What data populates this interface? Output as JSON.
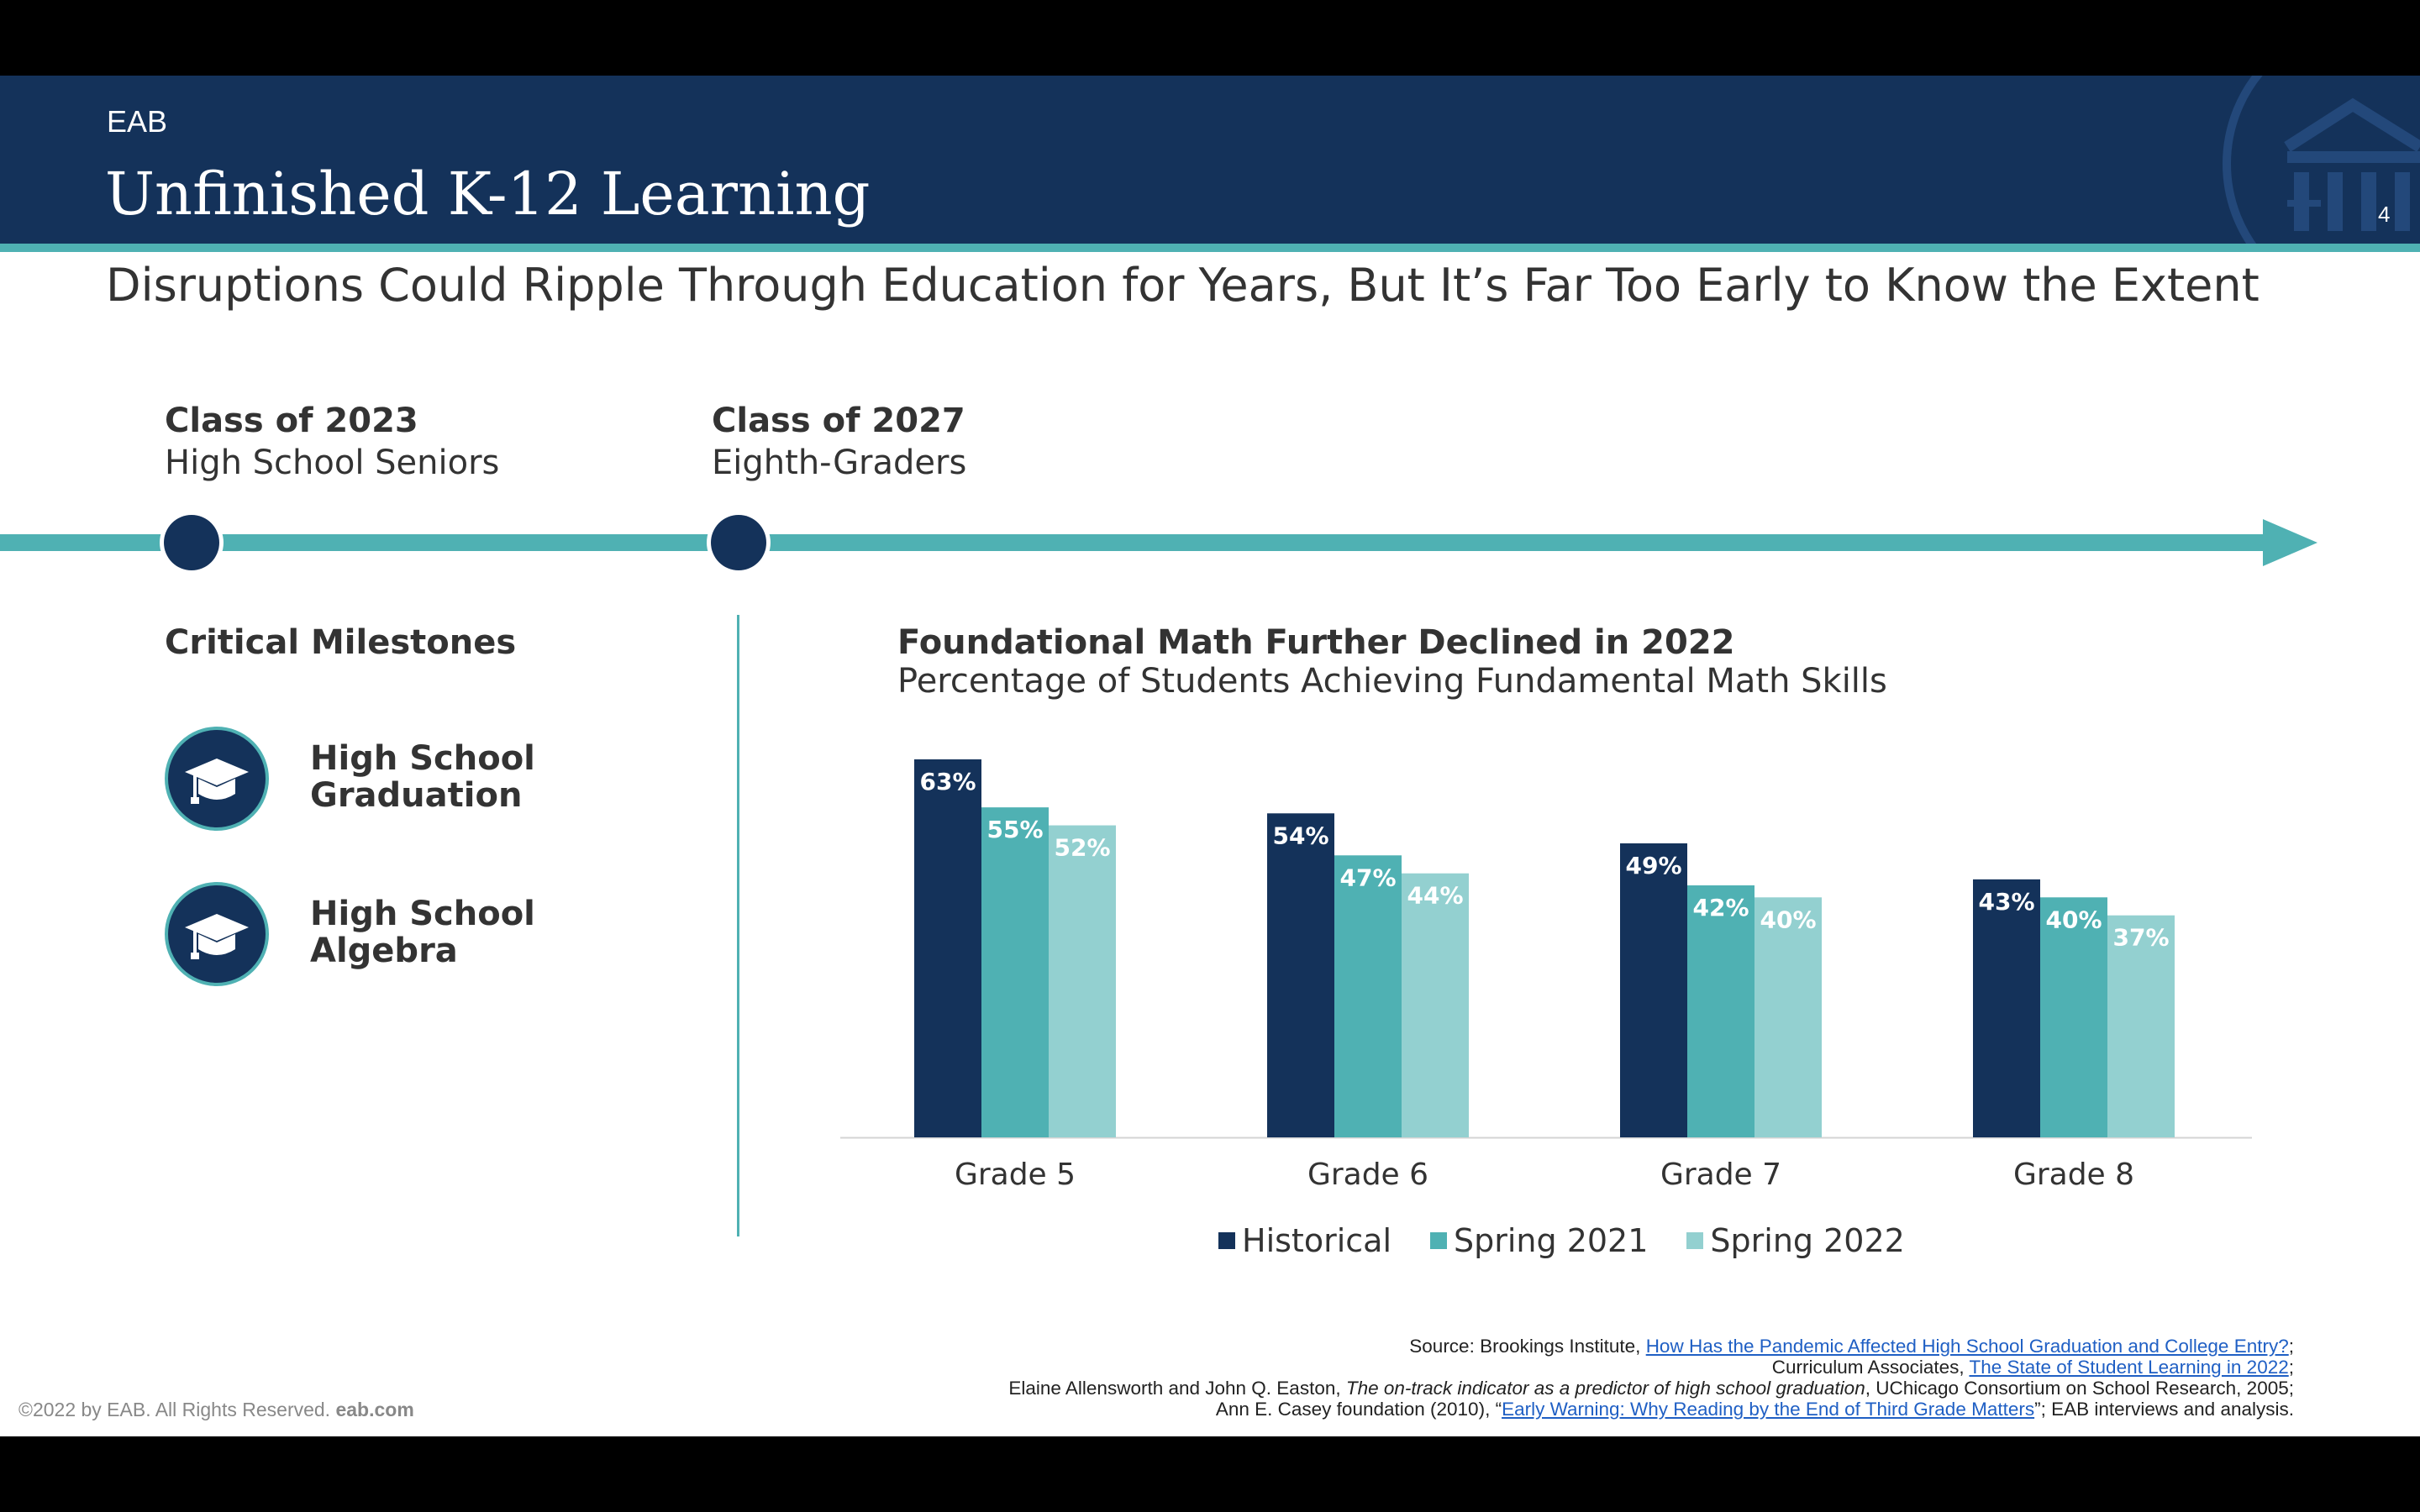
{
  "header": {
    "brand": "EAB",
    "title": "Unfinished K-12 Learning",
    "page_number": "4"
  },
  "subtitle": "Disruptions Could Ripple Through Education for Years, But It’s Far Too Early to Know the Extent",
  "timeline": {
    "classes": [
      {
        "title": "Class of 2023",
        "subtitle": "High School Seniors"
      },
      {
        "title": "Class of 2027",
        "subtitle": "Eighth-Graders"
      }
    ]
  },
  "milestones": {
    "heading": "Critical Milestones",
    "items": [
      {
        "line1": "High School",
        "line2": "Graduation",
        "icon": "graduation-cap-icon"
      },
      {
        "line1": "High School",
        "line2": "Algebra",
        "icon": "graduation-cap-icon"
      }
    ]
  },
  "chart_data": {
    "type": "bar",
    "title": "Foundational Math Further Declined in 2022",
    "subtitle": "Percentage of Students Achieving Fundamental Math Skills",
    "categories": [
      "Grade 5",
      "Grade 6",
      "Grade 7",
      "Grade 8"
    ],
    "series": [
      {
        "name": "Historical",
        "values": [
          63,
          54,
          49,
          43
        ],
        "labels": [
          "63%",
          "54%",
          "49%",
          "43%"
        ],
        "color": "#14325a"
      },
      {
        "name": "Spring 2021",
        "values": [
          55,
          47,
          42,
          40
        ],
        "labels": [
          "55%",
          "47%",
          "42%",
          "40%"
        ],
        "color": "#4fb1b3"
      },
      {
        "name": "Spring 2022",
        "values": [
          52,
          44,
          40,
          37
        ],
        "labels": [
          "52%",
          "44%",
          "40%",
          "37%"
        ],
        "color": "#93d0d0"
      }
    ],
    "ylim": [
      0,
      63
    ],
    "grid": false,
    "legend": "bottom"
  },
  "sources": {
    "line1_prefix": "Source: Brookings Institute, ",
    "line1_link": "How Has the Pandemic Affected High School Graduation and College Entry?",
    "line1_suffix": ";",
    "line2_prefix": "Curriculum Associates, ",
    "line2_link": "The State of Student Learning in 2022",
    "line2_suffix": ";",
    "line3_prefix": "Elaine Allensworth and John Q. Easton, ",
    "line3_italic": "The on-track indicator as a predictor of high school graduation",
    "line3_suffix": ", UChicago Consortium on School Research, 2005;",
    "line4_prefix": "Ann E. Casey foundation (2010), “",
    "line4_link": "Early Warning: Why Reading by the End of Third Grade Matters",
    "line4_suffix": "”; EAB interviews and analysis."
  },
  "footer": {
    "copyright": "©2022 by EAB. All Rights Reserved.",
    "site": "eab.com"
  },
  "colors": {
    "navy": "#14325a",
    "teal": "#4fb1b3",
    "light_teal": "#93d0d0"
  }
}
